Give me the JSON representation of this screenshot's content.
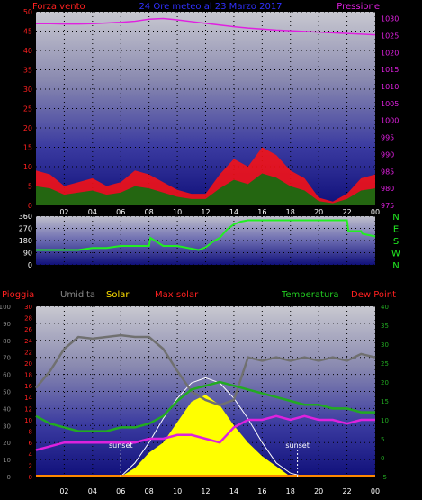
{
  "header": {
    "left_label": "Forza vento",
    "title": "24 Ore meteo al 23 Marzo 2017",
    "right_label": "Pressione"
  },
  "chart_data": [
    {
      "type": "line",
      "panel": "wind-pressure",
      "x_ticks": [
        "02",
        "04",
        "06",
        "08",
        "10",
        "12",
        "14",
        "16",
        "18",
        "20",
        "22",
        "00"
      ],
      "ylabel_left": "Forza vento",
      "ylabel_right": "Pressione",
      "y_left_ticks": [
        "0",
        "5",
        "10",
        "15",
        "20",
        "25",
        "30",
        "35",
        "40",
        "45",
        "50"
      ],
      "y_right_ticks": [
        "975",
        "980",
        "985",
        "990",
        "995",
        "1000",
        "1005",
        "1010",
        "1015",
        "1020",
        "1025",
        "1030"
      ],
      "ylim_left": [
        0,
        50
      ],
      "ylim_right": [
        975,
        1032
      ],
      "series": [
        {
          "name": "Pressione",
          "color": "#e020e0",
          "x": [
            0,
            1,
            2,
            3,
            4,
            5,
            6,
            7,
            8,
            9,
            10,
            11,
            12,
            13,
            14,
            15,
            16,
            17,
            18,
            19,
            20,
            21,
            22,
            23,
            24
          ],
          "y": [
            1028.5,
            1028.5,
            1028.4,
            1028.4,
            1028.5,
            1028.7,
            1028.9,
            1029.2,
            1029.8,
            1030.0,
            1029.6,
            1029.1,
            1028.6,
            1028.1,
            1027.6,
            1027.2,
            1026.9,
            1026.6,
            1026.4,
            1026.2,
            1026.0,
            1025.8,
            1025.6,
            1025.4,
            1025.2
          ]
        },
        {
          "name": "Forza vento",
          "color": "#ff1010",
          "x": [
            0,
            1,
            2,
            3,
            4,
            5,
            6,
            7,
            8,
            9,
            10,
            11,
            12,
            13,
            14,
            15,
            16,
            17,
            18,
            19,
            20,
            21,
            22,
            23,
            24
          ],
          "y": [
            9,
            8,
            5,
            6,
            7,
            5,
            6,
            9,
            8,
            6,
            4,
            3,
            3,
            8,
            12,
            10,
            15,
            13,
            9,
            7,
            2,
            1,
            3,
            7,
            8
          ]
        }
      ]
    },
    {
      "type": "line",
      "panel": "wind-direction",
      "ylim": [
        0,
        360
      ],
      "y_ticks": [
        "0",
        "90",
        "180",
        "270",
        "360"
      ],
      "compass_labels": [
        "N",
        "W",
        "S",
        "E",
        "N"
      ],
      "series": [
        {
          "color": "#22ee22",
          "x": [
            0,
            2,
            3,
            4,
            5,
            6,
            7,
            8,
            8.1,
            9,
            10,
            11,
            11.5,
            12,
            12.5,
            13,
            13.5,
            14,
            14.5,
            15,
            16,
            17,
            18,
            19,
            20,
            21,
            22,
            22.1,
            23,
            23.1,
            24
          ],
          "y": [
            110,
            110,
            110,
            125,
            125,
            140,
            140,
            140,
            200,
            140,
            140,
            120,
            110,
            130,
            170,
            200,
            260,
            300,
            320,
            330,
            330,
            330,
            330,
            330,
            330,
            330,
            330,
            250,
            250,
            230,
            210
          ]
        }
      ]
    },
    {
      "type": "area",
      "panel": "rain-humidity-solar-temperature",
      "legend": [
        "Pioggia",
        "Umidita",
        "Solar",
        "Max solar",
        "Temperatura",
        "Dew Point"
      ],
      "legend_colors": [
        "#ff2020",
        "#888888",
        "#ffe000",
        "#ff2020",
        "#22cc22",
        "#ff2020"
      ],
      "y_outer_ticks": [
        "0",
        "10",
        "20",
        "30",
        "40",
        "50",
        "60",
        "70",
        "80",
        "90",
        "100"
      ],
      "y_inner_ticks": [
        "0",
        "2",
        "4",
        "6",
        "8",
        "10",
        "12",
        "14",
        "16",
        "18",
        "20",
        "22",
        "24",
        "26",
        "28",
        "30"
      ],
      "y_right_ticks": [
        "-5",
        "0",
        "5",
        "10",
        "15",
        "20",
        "25",
        "30",
        "35",
        "40"
      ],
      "annotations": [
        "sunset",
        "sunset"
      ],
      "series": [
        {
          "name": "Umidita",
          "color": "#707070",
          "ylim": [
            0,
            100
          ],
          "x": [
            0,
            1,
            2,
            3,
            4,
            5,
            6,
            7,
            8,
            9,
            10,
            11,
            12,
            13,
            14,
            15,
            16,
            17,
            18,
            19,
            20,
            21,
            22,
            23,
            24
          ],
          "y": [
            52,
            62,
            75,
            82,
            81,
            82,
            83,
            82,
            82,
            75,
            62,
            50,
            45,
            42,
            45,
            70,
            68,
            70,
            68,
            70,
            68,
            70,
            68,
            72,
            70
          ]
        },
        {
          "name": "Temperatura",
          "color": "#22aa22",
          "ylim": [
            -5,
            40
          ],
          "x": [
            0,
            1,
            2,
            3,
            4,
            5,
            6,
            7,
            8,
            9,
            10,
            11,
            12,
            13,
            14,
            15,
            16,
            17,
            18,
            19,
            20,
            21,
            22,
            23,
            24
          ],
          "y": [
            11,
            9,
            8,
            7,
            7,
            7,
            8,
            8,
            9,
            11,
            15,
            18,
            19,
            20,
            19,
            18,
            17,
            16,
            15,
            14,
            14,
            13,
            13,
            12,
            12
          ]
        },
        {
          "name": "Dew Point",
          "color": "#dd22dd",
          "ylim": [
            -5,
            40
          ],
          "x": [
            0,
            1,
            2,
            3,
            4,
            5,
            6,
            7,
            8,
            9,
            10,
            11,
            12,
            13,
            14,
            15,
            16,
            17,
            18,
            19,
            20,
            21,
            22,
            23,
            24
          ],
          "y": [
            2,
            3,
            4,
            4,
            4,
            4,
            4,
            4,
            5,
            5,
            6,
            6,
            5,
            4,
            8,
            10,
            10,
            11,
            10,
            11,
            10,
            10,
            9,
            10,
            10
          ]
        },
        {
          "name": "Max solar",
          "color": "#ffffff",
          "ylim": [
            0,
            100
          ],
          "x": [
            6,
            7,
            8,
            9,
            10,
            11,
            12,
            13,
            14,
            15,
            16,
            17,
            18,
            19
          ],
          "y": [
            0,
            8,
            20,
            34,
            46,
            55,
            58,
            55,
            46,
            34,
            20,
            8,
            2,
            0
          ]
        },
        {
          "name": "Solar",
          "color": "#ffff00",
          "ylim": [
            0,
            100
          ],
          "x": [
            6,
            7,
            8,
            9,
            10,
            11,
            12,
            13,
            14,
            15,
            16,
            17,
            18,
            19
          ],
          "y": [
            0,
            5,
            14,
            20,
            32,
            44,
            48,
            42,
            30,
            20,
            12,
            6,
            0,
            0
          ]
        },
        {
          "name": "Pioggia",
          "color": "#ff2020",
          "ylim": [
            0,
            30
          ],
          "x": [
            0,
            24
          ],
          "y": [
            0,
            0
          ]
        }
      ],
      "x_ticks": [
        "02",
        "04",
        "06",
        "08",
        "10",
        "12",
        "14",
        "16",
        "18",
        "20",
        "22",
        "00"
      ]
    }
  ]
}
